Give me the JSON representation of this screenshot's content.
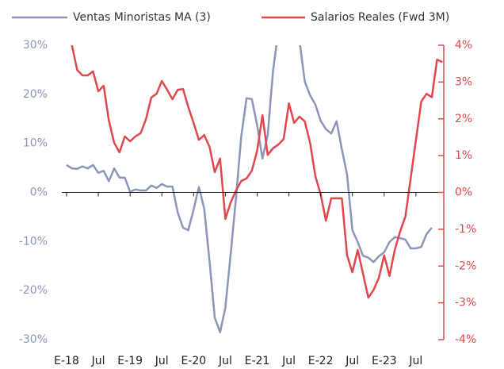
{
  "chart_data": {
    "type": "line",
    "categories": [
      "E-18",
      null,
      null,
      null,
      null,
      null,
      "Jul",
      null,
      null,
      null,
      null,
      null,
      "E-19",
      null,
      null,
      null,
      null,
      null,
      "Jul",
      null,
      null,
      null,
      null,
      null,
      "E-20",
      null,
      null,
      null,
      null,
      null,
      "Jul",
      null,
      null,
      null,
      null,
      null,
      "E-21",
      null,
      null,
      null,
      null,
      null,
      "Jul",
      null,
      null,
      null,
      null,
      null,
      "E-22",
      null,
      null,
      null,
      null,
      null,
      "Jul",
      null,
      null,
      null,
      null,
      null,
      "E-23",
      null,
      null,
      null,
      null,
      null,
      "Jul",
      null,
      null,
      null,
      null,
      null
    ],
    "series": [
      {
        "name": "Ventas Minoristas MA (3)",
        "color": "#8a97b8",
        "axis": "y",
        "values": [
          5.6,
          4.9,
          4.8,
          5.3,
          4.9,
          5.6,
          4.0,
          4.4,
          2.3,
          4.9,
          3.0,
          3.0,
          0.1,
          0.6,
          0.4,
          0.4,
          1.4,
          0.9,
          1.7,
          1.2,
          1.2,
          -4.1,
          -7.2,
          -7.7,
          -3.5,
          1.1,
          -3.3,
          -14,
          -25.5,
          -28.5,
          -23.5,
          -12.5,
          -1.2,
          11.4,
          19.2,
          19,
          13.7,
          6.9,
          11.7,
          24.7,
          33,
          36,
          37,
          34,
          31,
          22.6,
          19.8,
          17.9,
          14.6,
          12.9,
          12,
          14.5,
          8.8,
          3.6,
          -7.7,
          -10.1,
          -12.9,
          -13.3,
          -14.2,
          -13,
          -12.2,
          -10.1,
          -9.1,
          -9.3,
          -9.6,
          -11.4,
          -11.4,
          -11.1,
          -8.5,
          -7.2,
          null,
          null
        ]
      },
      {
        "name": "Salarios Reales (Fwd 3M)",
        "color": "#e0484d",
        "axis": "y2",
        "values": [
          null,
          4.0,
          3.33,
          3.18,
          3.18,
          3.29,
          2.75,
          2.9,
          1.95,
          1.35,
          1.09,
          1.52,
          1.39,
          1.52,
          1.61,
          1.99,
          2.58,
          2.68,
          3.03,
          2.79,
          2.53,
          2.79,
          2.81,
          2.32,
          1.89,
          1.43,
          1.56,
          1.24,
          0.55,
          0.92,
          -0.72,
          -0.27,
          0.05,
          0.31,
          0.38,
          0.59,
          1.13,
          2.1,
          1.02,
          1.2,
          1.3,
          1.45,
          2.42,
          1.89,
          2.06,
          1.93,
          1.35,
          0.44,
          -0.05,
          -0.77,
          -0.16,
          -0.16,
          -0.16,
          -1.71,
          -2.17,
          -1.56,
          -2.21,
          -2.86,
          -2.65,
          -2.32,
          -1.71,
          -2.27,
          -1.56,
          -1.07,
          -0.66,
          0.38,
          1.43,
          2.47,
          2.68,
          2.59,
          3.61,
          3.54
        ]
      }
    ],
    "ylim": [
      -30,
      30
    ],
    "yticks": [
      {
        "value": -30,
        "label": "-30%"
      },
      {
        "value": -20,
        "label": "-20%"
      },
      {
        "value": -10,
        "label": "-10%"
      },
      {
        "value": 0,
        "label": "0%"
      },
      {
        "value": 10,
        "label": "10%"
      },
      {
        "value": 20,
        "label": "20%"
      },
      {
        "value": 30,
        "label": "30%"
      }
    ],
    "y2lim": [
      -4,
      4
    ],
    "y2ticks": [
      {
        "value": -4,
        "label": "-4%"
      },
      {
        "value": -3,
        "label": "-3%"
      },
      {
        "value": -2,
        "label": "-2%"
      },
      {
        "value": -1,
        "label": "-1%"
      },
      {
        "value": 0,
        "label": "0%"
      },
      {
        "value": 1,
        "label": "1%"
      },
      {
        "value": 2,
        "label": "2%"
      },
      {
        "value": 3,
        "label": "3%"
      },
      {
        "value": 4,
        "label": "4%"
      }
    ],
    "grid": false
  }
}
